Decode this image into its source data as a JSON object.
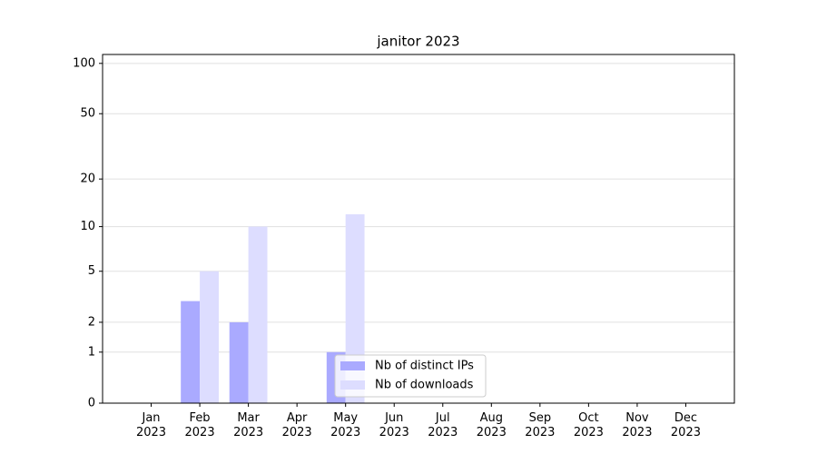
{
  "chart_data": {
    "type": "bar",
    "title": "janitor 2023",
    "categories": [
      "Jan\n2023",
      "Feb\n2023",
      "Mar\n2023",
      "Apr\n2023",
      "May\n2023",
      "Jun\n2023",
      "Jul\n2023",
      "Aug\n2023",
      "Sep\n2023",
      "Oct\n2023",
      "Nov\n2023",
      "Dec\n2023"
    ],
    "series": [
      {
        "name": "Nb of distinct IPs",
        "color": "#aaaaff",
        "values": [
          0,
          3,
          2,
          0,
          1,
          0,
          0,
          0,
          0,
          0,
          0,
          0
        ]
      },
      {
        "name": "Nb of downloads",
        "color": "#ddddff",
        "values": [
          0,
          5,
          10,
          0,
          12,
          0,
          0,
          0,
          0,
          0,
          0,
          0
        ]
      }
    ],
    "yscale": "log1p",
    "ylim": [
      0,
      113
    ],
    "yticks": [
      0,
      1,
      2,
      5,
      10,
      20,
      50,
      100
    ],
    "grid": true,
    "legend": "lower center"
  }
}
